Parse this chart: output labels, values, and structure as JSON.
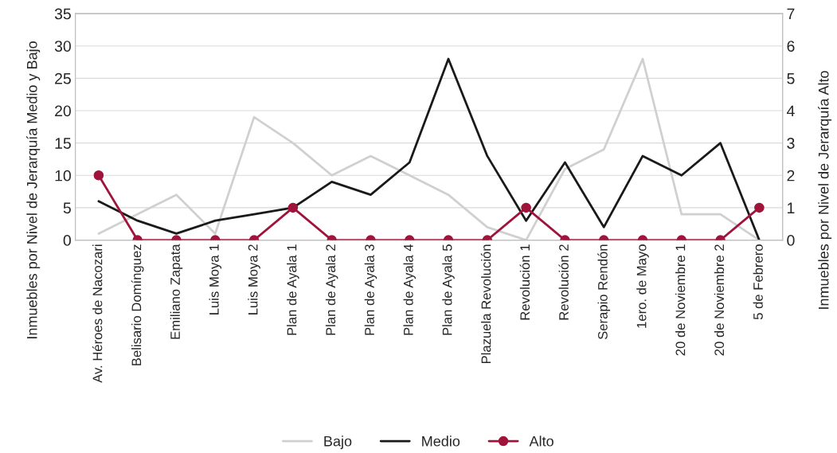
{
  "chart_data": {
    "type": "line",
    "categories": [
      "Av. Héroes de Nacozari",
      "Belisario Domínguez",
      "Emiliano Zapata",
      "Luis Moya 1",
      "Luis Moya 2",
      "Plan de Ayala 1",
      "Plan de Ayala 2",
      "Plan de Ayala 3",
      "Plan de Ayala 4",
      "Plan de Ayala 5",
      "Plazuela Revolución",
      "Revolución 1",
      "Revolución 2",
      "Serapio Rendón",
      "1ero. de Mayo",
      "20 de Noviembre 1",
      "20 de Noviembre 2",
      "5 de Febrero"
    ],
    "series": [
      {
        "name": "Bajo",
        "color": "#d0d0d0",
        "marker": "none",
        "values": [
          1,
          4,
          7,
          1,
          19,
          15,
          10,
          13,
          10,
          7,
          2,
          0,
          11,
          14,
          28,
          4,
          4,
          0
        ]
      },
      {
        "name": "Medio",
        "color": "#1a1a1a",
        "marker": "none",
        "values": [
          6,
          3,
          1,
          3,
          4,
          5,
          9,
          7,
          12,
          28,
          13,
          3,
          12,
          2,
          13,
          10,
          15,
          0
        ]
      },
      {
        "name": "Alto",
        "color": "#a0143c",
        "marker": "circle",
        "axis": "y2",
        "values": [
          2,
          0,
          0,
          0,
          0,
          1,
          0,
          0,
          0,
          0,
          0,
          1,
          0,
          0,
          0,
          0,
          0,
          1
        ]
      }
    ],
    "ylabel": "Inmuebles por Nivel de Jerarquía Medio y Bajo",
    "y2label": "Inmuebles por Nivel de Jerarquía Alto",
    "ylim": [
      0,
      35
    ],
    "yticks": [
      0,
      5,
      10,
      15,
      20,
      25,
      30,
      35
    ],
    "y2lim": [
      0,
      7
    ],
    "y2ticks": [
      0,
      1,
      2,
      3,
      4,
      5,
      6,
      7
    ],
    "grid": "y",
    "legend": "bottom"
  }
}
